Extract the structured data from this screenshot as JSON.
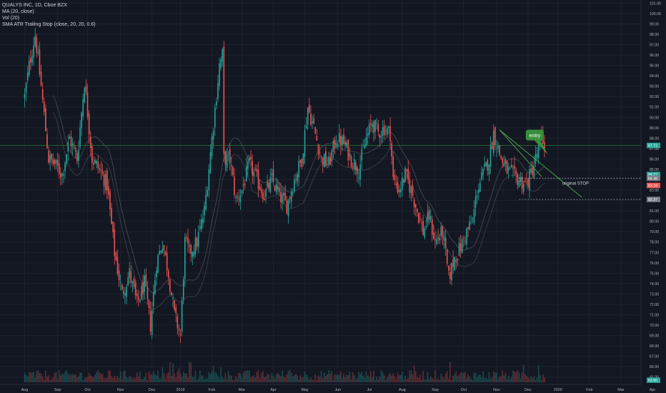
{
  "legend": {
    "symbol_line": "QUALYS INC, 1D, Cboe BZX",
    "ma_line": "MA (20, close)",
    "vol_line": "Vol (20)",
    "atr_line": "SMA ATR Trailing Stop (close, 20, 20, 0.6)"
  },
  "colors": {
    "background": "#131722",
    "grid": "#1e222d",
    "up": "#26a69a",
    "down": "#ef5350",
    "current_price_line": "#2e7d32",
    "annotation": "#388e3c",
    "axis_text": "#b2b5be"
  },
  "chart_data": {
    "type": "candlestick",
    "symbol": "QUALYS INC",
    "interval": "1D",
    "exchange": "Cboe BZX",
    "y_axis": {
      "min": 64.5,
      "max": 101.3,
      "ticks": [
        "101.00",
        "100.00",
        "99.00",
        "98.00",
        "97.00",
        "96.00",
        "95.00",
        "94.00",
        "93.00",
        "92.00",
        "91.00",
        "90.00",
        "89.00",
        "88.00",
        "87.00",
        "86.00",
        "85.00",
        "84.00",
        "83.00",
        "82.00",
        "81.00",
        "80.00",
        "79.00",
        "78.00",
        "77.00",
        "76.00",
        "75.00",
        "74.00",
        "73.00",
        "72.00",
        "71.00",
        "70.00",
        "69.00",
        "68.00",
        "67.00",
        "66.00",
        "65.00"
      ]
    },
    "x_axis": {
      "ticks": [
        "Aug",
        "Sep",
        "Oct",
        "Nov",
        "Dec",
        "2019",
        "Feb",
        "Mar",
        "Apr",
        "May",
        "Jun",
        "Jul",
        "Aug",
        "Sep",
        "Oct",
        "Nov",
        "Dec",
        "2020",
        "Feb",
        "Mar",
        "Apr"
      ],
      "tick_index": [
        0,
        22,
        42,
        64,
        85,
        104,
        125,
        145,
        166,
        187,
        209,
        230,
        252,
        274,
        293,
        315,
        336,
        356,
        377,
        398,
        419
      ],
      "bar_count": 382
    },
    "anchors": [
      [
        0,
        92.0
      ],
      [
        3,
        95.0
      ],
      [
        7,
        98.0
      ],
      [
        11,
        93.0
      ],
      [
        16,
        86.0
      ],
      [
        20,
        85.5
      ],
      [
        25,
        84.5
      ],
      [
        30,
        88.0
      ],
      [
        35,
        86.0
      ],
      [
        40,
        93.5
      ],
      [
        45,
        86.0
      ],
      [
        50,
        85.0
      ],
      [
        55,
        83.5
      ],
      [
        60,
        77.0
      ],
      [
        65,
        73.0
      ],
      [
        70,
        75.0
      ],
      [
        75,
        72.0
      ],
      [
        80,
        74.0
      ],
      [
        84,
        70.0
      ],
      [
        88,
        76.0
      ],
      [
        92,
        78.0
      ],
      [
        96,
        75.0
      ],
      [
        100,
        71.0
      ],
      [
        104,
        69.0
      ],
      [
        107,
        78.0
      ],
      [
        110,
        77.0
      ],
      [
        115,
        78.0
      ],
      [
        120,
        81.0
      ],
      [
        125,
        88.0
      ],
      [
        130,
        95.0
      ],
      [
        132,
        96.0
      ],
      [
        133,
        86.0
      ],
      [
        137,
        86.0
      ],
      [
        141,
        82.0
      ],
      [
        145,
        83.0
      ],
      [
        150,
        85.5
      ],
      [
        155,
        84.0
      ],
      [
        160,
        82.5
      ],
      [
        165,
        84.0
      ],
      [
        170,
        82.5
      ],
      [
        175,
        81.5
      ],
      [
        180,
        84.0
      ],
      [
        185,
        86.0
      ],
      [
        189,
        91.0
      ],
      [
        193,
        89.0
      ],
      [
        198,
        86.0
      ],
      [
        203,
        85.5
      ],
      [
        208,
        88.0
      ],
      [
        213,
        87.5
      ],
      [
        218,
        86.0
      ],
      [
        223,
        85.0
      ],
      [
        228,
        88.0
      ],
      [
        232,
        89.5
      ],
      [
        236,
        88.5
      ],
      [
        240,
        89.0
      ],
      [
        244,
        88.5
      ],
      [
        246,
        84.0
      ],
      [
        250,
        83.0
      ],
      [
        254,
        84.5
      ],
      [
        258,
        83.0
      ],
      [
        262,
        81.0
      ],
      [
        266,
        79.0
      ],
      [
        270,
        80.5
      ],
      [
        274,
        78.0
      ],
      [
        279,
        79.0
      ],
      [
        283,
        74.5
      ],
      [
        287,
        76.5
      ],
      [
        291,
        77.5
      ],
      [
        295,
        79.0
      ],
      [
        299,
        80.0
      ],
      [
        302,
        83.0
      ],
      [
        306,
        84.5
      ],
      [
        310,
        86.0
      ],
      [
        313,
        88.5
      ],
      [
        317,
        86.5
      ],
      [
        321,
        85.0
      ],
      [
        325,
        84.5
      ],
      [
        330,
        84.0
      ],
      [
        335,
        83.5
      ],
      [
        340,
        85.5
      ],
      [
        345,
        88.0
      ],
      [
        347,
        87.3
      ]
    ],
    "volume": {
      "max_units": 100
    },
    "series": [
      {
        "name": "MA (20, close)"
      },
      {
        "name": "SMA ATR Trailing Stop (close, 20, 20, 0.6)"
      }
    ],
    "price_lines": [
      {
        "label": "87.72",
        "value": 87.3,
        "color": "#2e7d32"
      },
      {
        "label": "84.48",
        "value": 84.15,
        "color": "#ffffff",
        "style": "dashed"
      },
      {
        "label": "82.37",
        "value": 82.1,
        "color": "#ffffff",
        "style": "dashed"
      }
    ],
    "price_badges": [
      {
        "label": "87.72",
        "value": 87.3,
        "color": "#26a69a"
      },
      {
        "label": "84.27",
        "value": 84.5,
        "color": "#26a69a"
      },
      {
        "label": "84.48",
        "value": 84.15,
        "color": "#787b86"
      },
      {
        "label": "83.18",
        "value": 83.45,
        "color": "#ef5350"
      },
      {
        "label": "82.37",
        "value": 82.1,
        "color": "#787b86"
      },
      {
        "label": "63.50",
        "value": 64.7,
        "color": "#26a69a"
      }
    ],
    "annotations": {
      "entry": {
        "label": "entry",
        "bar": 335,
        "price": 88.2
      },
      "stop": {
        "label": "original STOP",
        "bar": 355,
        "price": 83.8
      }
    },
    "trendlines": [
      {
        "from": [
          317,
          88.8
        ],
        "to": [
          372,
          82.3
        ]
      },
      {
        "from": [
          317,
          88.8
        ],
        "to": [
          345,
          84.3
        ]
      }
    ]
  }
}
